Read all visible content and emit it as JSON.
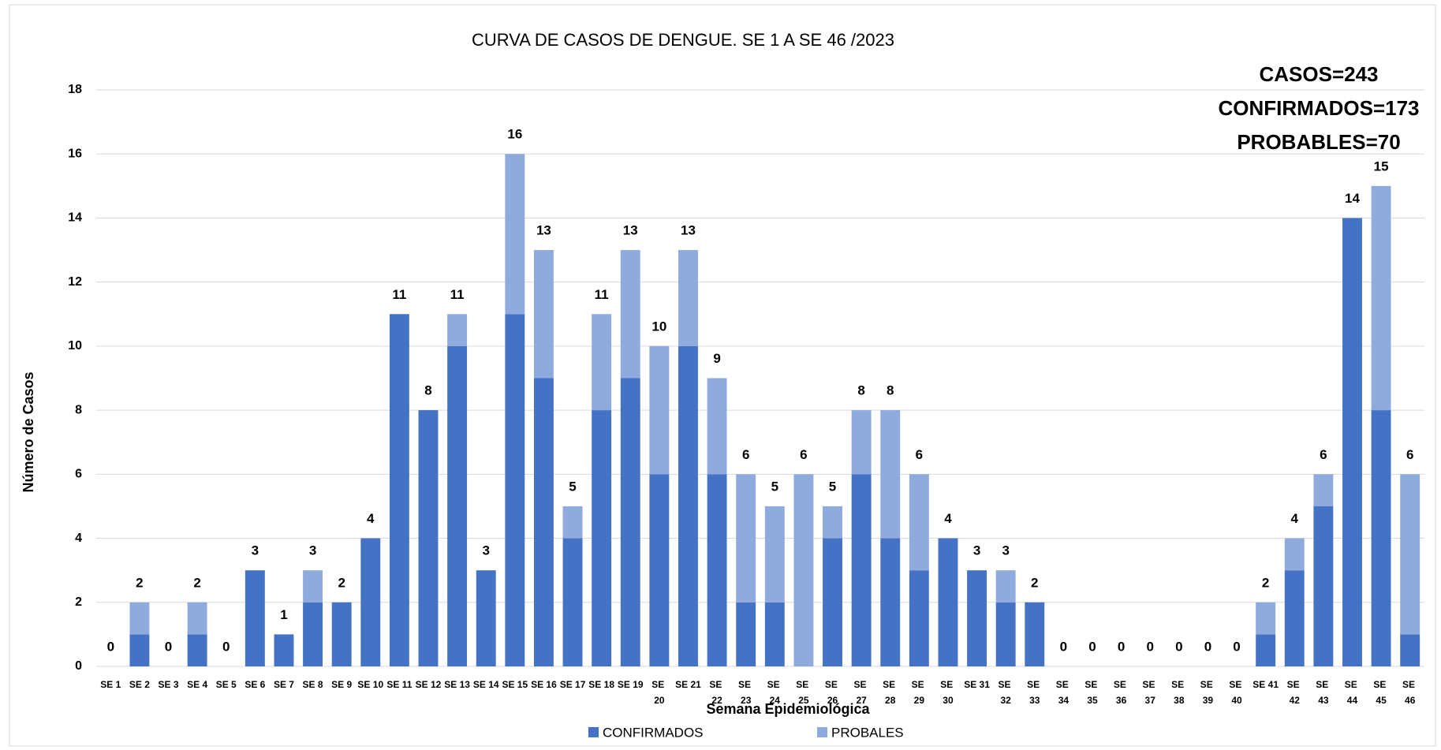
{
  "chart_data": {
    "type": "stacked-bar",
    "title": "CURVA DE CASOS DE DENGUE. SE 1 A SE 46 /2023",
    "x_label": "Semana Epidemiológica",
    "y_label": "Número de Casos",
    "annotations": [
      "CASOS=243",
      "CONFIRMADOS=173",
      "PROBABLES=70"
    ],
    "categories": [
      "SE 1",
      "SE 2",
      "SE 3",
      "SE 4",
      "SE 5",
      "SE 6",
      "SE 7",
      "SE 8",
      "SE 9",
      "SE 10",
      "SE 11",
      "SE 12",
      "SE 13",
      "SE 14",
      "SE 15",
      "SE 16",
      "SE 17",
      "SE 18",
      "SE 19",
      "SE 20",
      "SE 21",
      "SE 22",
      "SE 23",
      "SE 24",
      "SE 25",
      "SE 26",
      "SE 27",
      "SE 28",
      "SE 29",
      "SE 30",
      "SE 31",
      "SE 32",
      "SE 33",
      "SE 34",
      "SE 35",
      "SE 36",
      "SE 37",
      "SE 38",
      "SE 39",
      "SE 40",
      "SE 41",
      "SE 42",
      "SE 43",
      "SE 44",
      "SE 45",
      "SE 46"
    ],
    "series": [
      {
        "name": "CONFIRMADOS",
        "color": "#4472c4",
        "values": [
          0,
          1,
          0,
          1,
          0,
          3,
          1,
          2,
          2,
          4,
          11,
          8,
          10,
          3,
          11,
          9,
          4,
          8,
          9,
          6,
          10,
          6,
          2,
          2,
          0,
          4,
          6,
          4,
          3,
          4,
          3,
          2,
          2,
          0,
          0,
          0,
          0,
          0,
          0,
          0,
          1,
          3,
          5,
          14,
          8,
          1
        ]
      },
      {
        "name": "PROBALES",
        "color": "#8faadc",
        "values": [
          0,
          1,
          0,
          1,
          0,
          0,
          0,
          1,
          0,
          0,
          0,
          0,
          1,
          0,
          5,
          4,
          1,
          3,
          4,
          4,
          3,
          3,
          4,
          3,
          6,
          1,
          2,
          4,
          3,
          0,
          0,
          1,
          0,
          0,
          0,
          0,
          0,
          0,
          0,
          0,
          1,
          1,
          1,
          0,
          7,
          5
        ]
      }
    ],
    "totals": [
      0,
      2,
      0,
      2,
      0,
      3,
      1,
      3,
      2,
      4,
      11,
      8,
      11,
      3,
      16,
      13,
      5,
      11,
      13,
      10,
      13,
      9,
      6,
      5,
      6,
      5,
      8,
      8,
      6,
      4,
      3,
      3,
      2,
      0,
      0,
      0,
      0,
      0,
      0,
      0,
      2,
      4,
      6,
      14,
      15,
      6
    ],
    "ylim": [
      0,
      18
    ],
    "yticks": [
      0,
      2,
      4,
      6,
      8,
      10,
      12,
      14,
      16,
      18
    ],
    "grid": true,
    "legend": "bottom"
  }
}
